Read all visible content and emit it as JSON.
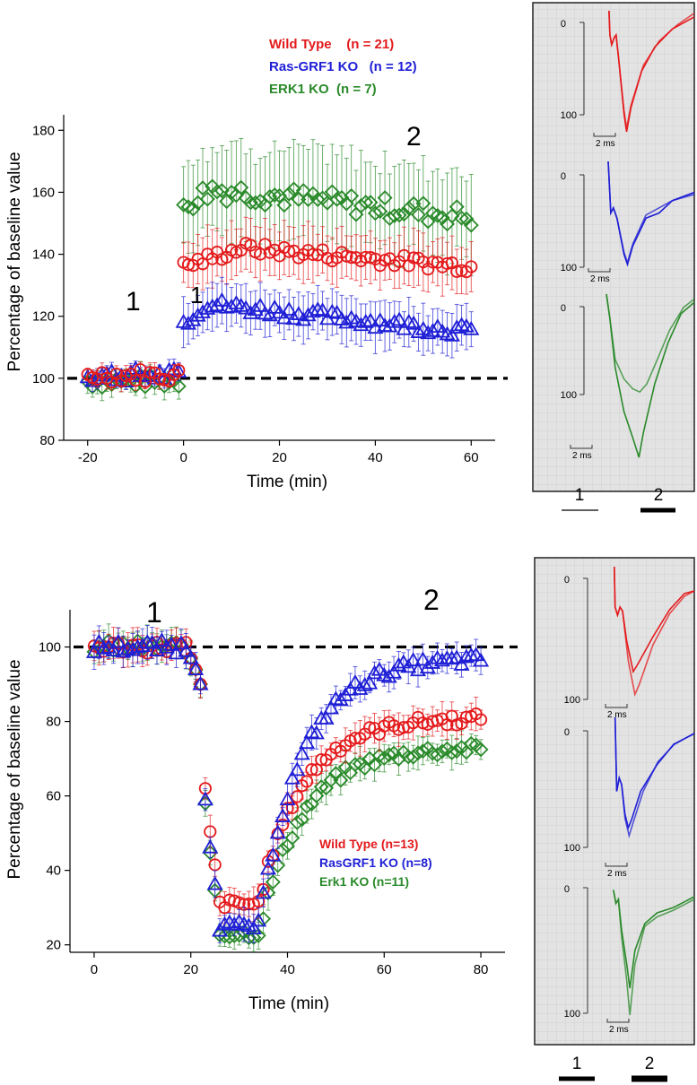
{
  "chart_data": [
    {
      "type": "scatter",
      "panel": "top",
      "xlabel": "Time (min)",
      "ylabel": "Percentage of baseline value",
      "xlim": [
        -25,
        65
      ],
      "ylim": [
        80,
        185
      ],
      "xticks": [
        -20,
        0,
        20,
        40,
        60
      ],
      "yticks": [
        80,
        100,
        120,
        140,
        160,
        180
      ],
      "baseline": 100,
      "annotations": [
        "1",
        "1",
        "2"
      ],
      "legend": [
        "Wild Type    (n = 21)",
        "Ras-GRF1 KO   (n = 12)",
        "ERK1 KO  (n = 7)"
      ],
      "series": [
        {
          "name": "Wild Type",
          "n": 21,
          "color": "#e41a1c",
          "marker": "circle",
          "pre": {
            "mean": 101,
            "err": 2
          },
          "post": {
            "start": 136,
            "peak": 142,
            "peak_t": 12,
            "end": 136,
            "err": 8
          }
        },
        {
          "name": "Ras-GRF1 KO",
          "n": 12,
          "color": "#1f1fd6",
          "marker": "triangle",
          "pre": {
            "mean": 101,
            "err": 2
          },
          "post": {
            "start": 118,
            "peak": 124,
            "peak_t": 5,
            "end": 115,
            "err": 7
          }
        },
        {
          "name": "ERK1 KO",
          "n": 7,
          "color": "#2a8a2a",
          "marker": "diamond",
          "pre": {
            "mean": 99,
            "err": 3
          },
          "post": {
            "start": 156,
            "peak": 161,
            "peak_t": 6,
            "end": 152,
            "err": 15
          }
        }
      ]
    },
    {
      "type": "scatter",
      "panel": "bottom",
      "xlabel": "Time (min)",
      "ylabel": "Percentage of baseline value",
      "xlim": [
        -5,
        85
      ],
      "ylim": [
        18,
        110
      ],
      "xticks": [
        0,
        20,
        40,
        60,
        80
      ],
      "yticks": [
        20,
        40,
        60,
        80,
        100
      ],
      "baseline": 100,
      "annotations": [
        "1",
        "2"
      ],
      "legend": [
        "Wild Type (n=13)",
        "RasGRF1 KO (n=8)",
        "Erk1 KO (n=11)"
      ],
      "series": [
        {
          "name": "Wild Type",
          "n": 13,
          "color": "#e41a1c",
          "marker": "circle",
          "base": 100,
          "min": 31,
          "recover_mid": 40,
          "plateau": 81,
          "err": 4
        },
        {
          "name": "RasGRF1 KO",
          "n": 8,
          "color": "#1f1fd6",
          "marker": "triangle",
          "base": 100,
          "min": 25,
          "recover_mid": 38,
          "plateau": 97,
          "err": 4
        },
        {
          "name": "Erk1 KO",
          "n": 11,
          "color": "#2a8a2a",
          "marker": "diamond",
          "base": 100,
          "min": 23,
          "recover_mid": 44,
          "plateau": 73,
          "err": 4
        }
      ]
    }
  ],
  "traces": {
    "top": {
      "labels": [
        {
          "zero": "0",
          "hundred": "100",
          "scale": "2 ms",
          "color": "#e41a1c"
        },
        {
          "zero": "0",
          "hundred": "100",
          "scale": "2 ms",
          "color": "#1f1fd6"
        },
        {
          "zero": "0",
          "hundred": "100",
          "scale": "2 ms",
          "color": "#2a8a2a"
        }
      ],
      "legend_1": "1",
      "legend_2": "2"
    },
    "bottom": {
      "labels": [
        {
          "zero": "0",
          "hundred": "100",
          "scale": "2 ms",
          "color": "#e41a1c"
        },
        {
          "zero": "0",
          "hundred": "100",
          "scale": "2 ms",
          "color": "#1f1fd6"
        },
        {
          "zero": "0",
          "hundred": "100",
          "scale": "2 ms",
          "color": "#2a8a2a"
        }
      ],
      "legend_1": "1",
      "legend_2": "2"
    }
  }
}
